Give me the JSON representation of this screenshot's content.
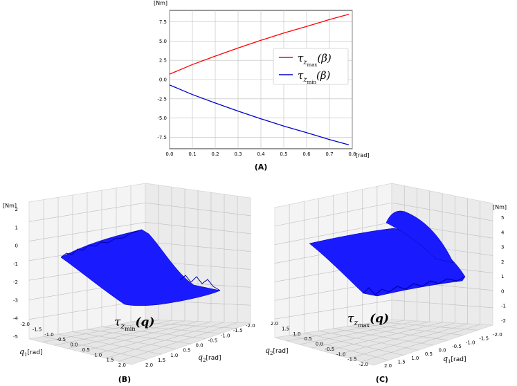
{
  "chart_data": [
    {
      "panel": "(A)",
      "type": "line",
      "xlabel": "[rad]",
      "ylabel": "[Nm]",
      "xlim": [
        0.0,
        0.8
      ],
      "ylim": [
        -9,
        9
      ],
      "x_ticks": [
        "0.0",
        "0.1",
        "0.2",
        "0.3",
        "0.4",
        "0.5",
        "0.6",
        "0.7",
        "0.8"
      ],
      "y_ticks": [
        "7.5",
        "5.0",
        "2.5",
        "0.0",
        "-2.5",
        "-5.0",
        "-7.5"
      ],
      "grid": true,
      "legend_position": "center-right",
      "series": [
        {
          "name_math": "τ",
          "name_sub": "z",
          "name_subsub": "max",
          "name_arg": "(β)",
          "color": "#ff0000",
          "x": [
            0.0,
            0.1,
            0.2,
            0.3,
            0.4,
            0.5,
            0.6,
            0.7,
            0.785
          ],
          "y": [
            0.7,
            1.95,
            3.05,
            4.1,
            5.1,
            6.05,
            6.9,
            7.8,
            8.5
          ]
        },
        {
          "name_math": "τ",
          "name_sub": "z",
          "name_subsub": "min",
          "name_arg": "(β)",
          "color": "#0000cc",
          "x": [
            0.0,
            0.1,
            0.2,
            0.3,
            0.4,
            0.5,
            0.6,
            0.7,
            0.785
          ],
          "y": [
            -0.7,
            -1.95,
            -3.05,
            -4.1,
            -5.1,
            -6.05,
            -6.9,
            -7.8,
            -8.5
          ]
        }
      ]
    },
    {
      "panel": "(B)",
      "type": "surface",
      "zlabel": "[Nm]",
      "x_axis_label": "q",
      "x_axis_sub": "1",
      "x_axis_unit": "[rad]",
      "y_axis_label": "q",
      "y_axis_sub": "2",
      "y_axis_unit": "[rad]",
      "x_ticks": [
        "-2.0",
        "-1.5",
        "-1.0",
        "-0.5",
        "0.0",
        "0.5",
        "1.0",
        "1.5",
        "2.0"
      ],
      "y_ticks": [
        "2.0",
        "1.5",
        "1.0",
        "0.5",
        "0.0",
        "-0.5",
        "-1.0",
        "-1.5",
        "-2.0"
      ],
      "z_ticks": [
        "2",
        "1",
        "0",
        "-1",
        "-2",
        "-3",
        "-4",
        "-5"
      ],
      "zlim": [
        -5,
        2
      ],
      "surface_label_math": "τ",
      "surface_label_sub": "z",
      "surface_label_subsub": "min",
      "surface_label_arg": "(q)",
      "color": "#1a1aff"
    },
    {
      "panel": "(C)",
      "type": "surface",
      "zlabel": "[Nm]",
      "x_axis_label": "q",
      "x_axis_sub": "2",
      "x_axis_unit": "[rad]",
      "y_axis_label": "q",
      "y_axis_sub": "1",
      "y_axis_unit": "[rad]",
      "x_ticks": [
        "2.0",
        "1.5",
        "1.0",
        "0.5",
        "0.0",
        "-0.5",
        "-1.0",
        "-1.5",
        "-2.0"
      ],
      "y_ticks": [
        "2.0",
        "1.5",
        "1.0",
        "0.5",
        "0.0",
        "-0.5",
        "-1.0",
        "-1.5",
        "-2.0"
      ],
      "z_ticks": [
        "5",
        "4",
        "3",
        "2",
        "1",
        "0",
        "-1",
        "-2"
      ],
      "zlim": [
        -2,
        5
      ],
      "surface_label_math": "τ",
      "surface_label_sub": "z",
      "surface_label_subsub": "max",
      "surface_label_arg": "(q)",
      "color": "#1a1aff"
    }
  ]
}
